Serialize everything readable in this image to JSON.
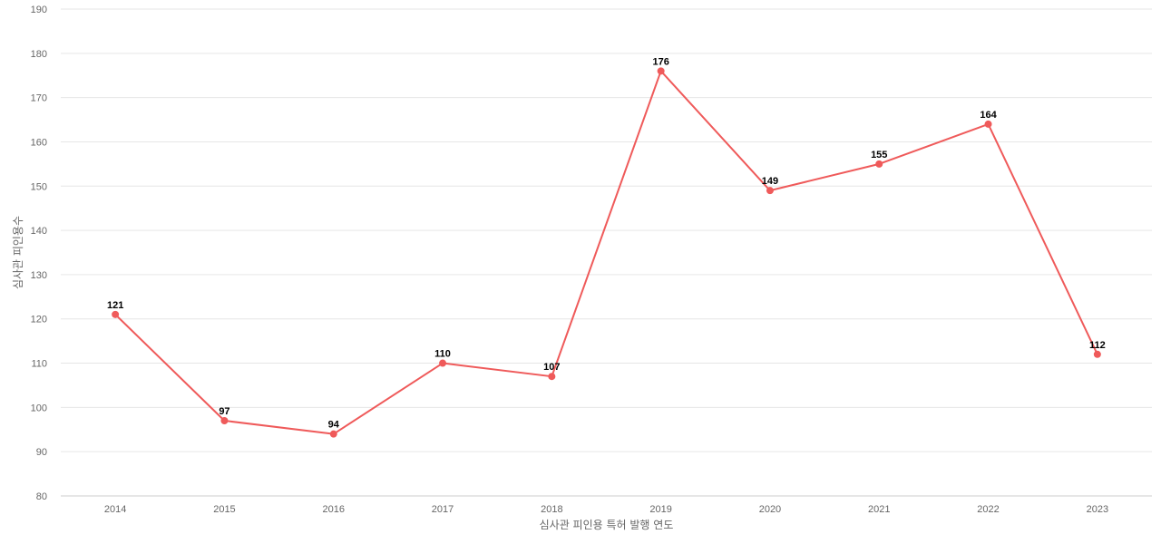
{
  "chart_data": {
    "type": "line",
    "title": "",
    "xlabel": "심사관 피인용 특허 발행 연도",
    "ylabel": "심사관 피인용수",
    "categories": [
      "2014",
      "2015",
      "2016",
      "2017",
      "2018",
      "2019",
      "2020",
      "2021",
      "2022",
      "2023"
    ],
    "series": [
      {
        "values": [
          121,
          97,
          94,
          110,
          107,
          176,
          149,
          155,
          164,
          112
        ]
      }
    ],
    "ylim": [
      80,
      190
    ],
    "yticks": [
      80,
      90,
      100,
      110,
      120,
      130,
      140,
      150,
      160,
      170,
      180,
      190
    ],
    "grid": true,
    "legend": "none",
    "line_color": "#ef5a5a"
  }
}
